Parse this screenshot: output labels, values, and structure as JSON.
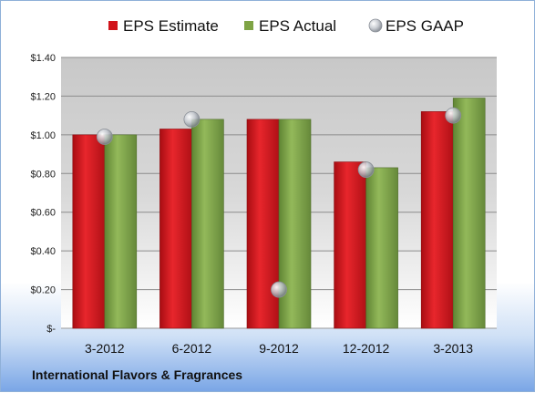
{
  "company_name": "International Flavors & Fragrances",
  "colors": {
    "estimate": "#d1141b",
    "actual": "#7fa445",
    "gaap": "#b8bcc4"
  },
  "chart_data": {
    "type": "bar",
    "title": "",
    "xlabel": "",
    "ylabel": "",
    "categories": [
      "3-2012",
      "6-2012",
      "9-2012",
      "12-2012",
      "3-2013"
    ],
    "series": [
      {
        "name": "EPS Estimate",
        "kind": "bar",
        "values": [
          1.0,
          1.03,
          1.08,
          0.86,
          1.12
        ]
      },
      {
        "name": "EPS Actual",
        "kind": "bar",
        "values": [
          1.0,
          1.08,
          1.08,
          0.83,
          1.19
        ]
      },
      {
        "name": "EPS GAAP",
        "kind": "marker",
        "values": [
          0.99,
          1.08,
          0.2,
          0.82,
          1.1
        ]
      }
    ],
    "ylim": [
      0,
      1.4
    ],
    "yticks": [
      0,
      0.2,
      0.4,
      0.6,
      0.8,
      1.0,
      1.2,
      1.4
    ],
    "ytick_labels": [
      "$-",
      "$0.20",
      "$0.40",
      "$0.60",
      "$0.80",
      "$1.00",
      "$1.20",
      "$1.40"
    ],
    "grid": true,
    "legend_position": "top"
  }
}
